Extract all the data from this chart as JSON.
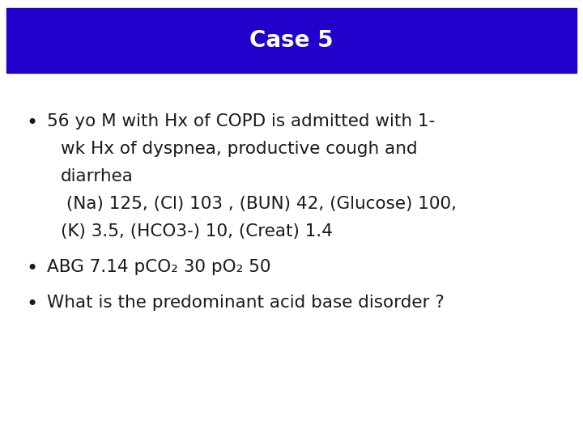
{
  "title": "Case 5",
  "title_bg_color": "#2200CC",
  "title_text_color": "#FFFFFF",
  "title_fontsize": 20,
  "title_font_weight": "bold",
  "bg_color": "#FFFFFF",
  "bullet_color": "#1a1a1a",
  "bullet_fontsize": 15.5,
  "line1": "56 yo M with Hx of COPD is admitted with 1-",
  "line2": "wk Hx of dyspnea, productive cough and",
  "line3": "diarrhea",
  "line4": " (Na) 125, (Cl) 103 , (BUN) 42, (Glucose) 100,",
  "line5": "(K) 3.5, (HCO3-) 10, (Creat) 1.4",
  "line6": "ABG 7.14 pCO₂ 30 pO₂ 50",
  "line7": "What is the predominant acid base disorder ?"
}
